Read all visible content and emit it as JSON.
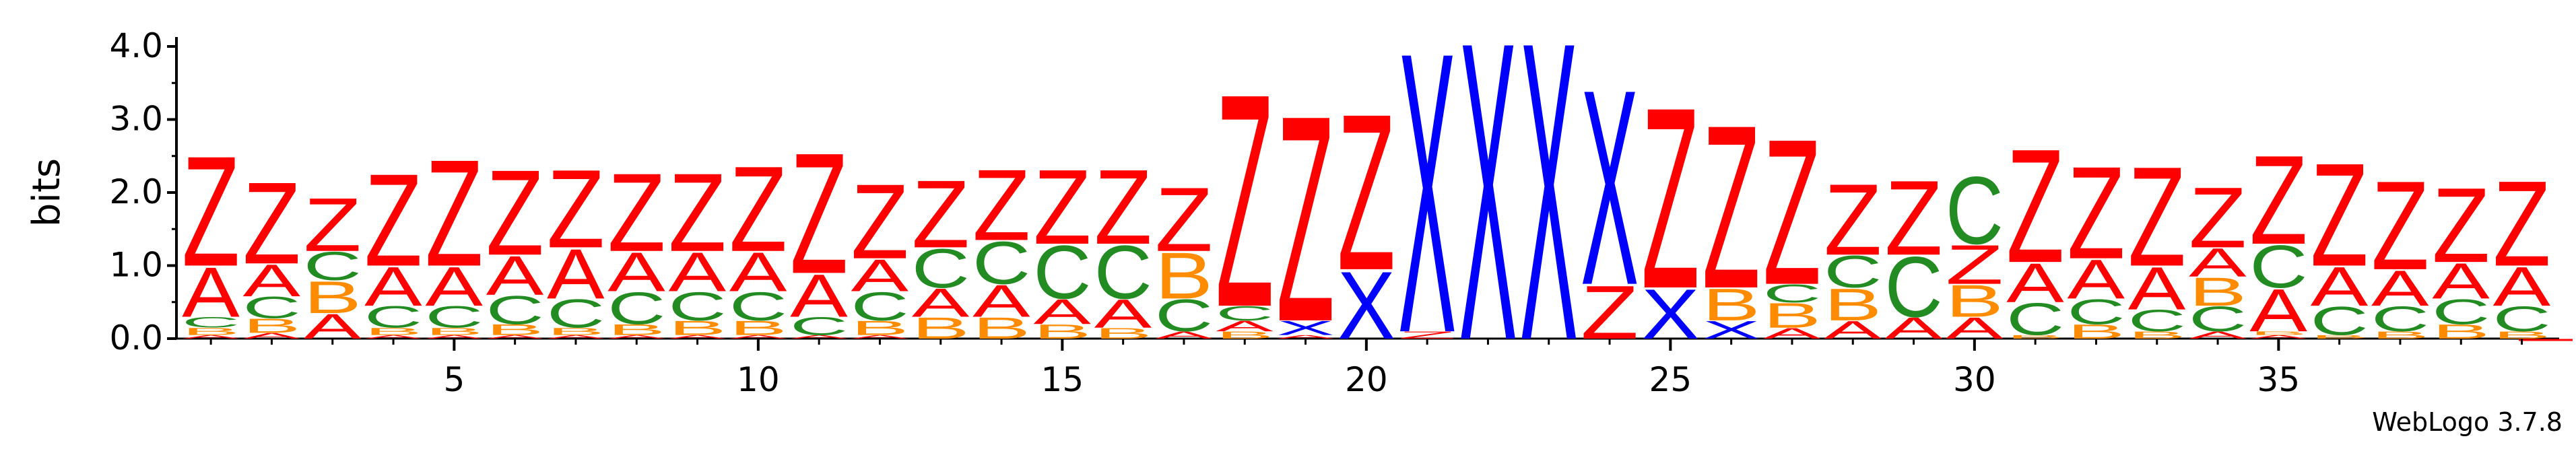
{
  "footer": {
    "credit": "WebLogo 3.7.8"
  },
  "chart_data": {
    "type": "sequence_logo",
    "ylabel": "bits",
    "ylim": [
      0,
      4.2
    ],
    "yticks": [
      "0.0",
      "1.0",
      "2.0",
      "3.0",
      "4.0"
    ],
    "xtick_positions": [
      5,
      10,
      15,
      20,
      25,
      30,
      35
    ],
    "colors": {
      "Z": "#ff0000",
      "A": "#ff0000",
      "B": "#ff8c00",
      "C": "#228b22",
      "X": "#0000ff"
    },
    "positions": [
      {
        "x": 1,
        "stack": [
          [
            "A",
            0.05
          ],
          [
            "B",
            0.1
          ],
          [
            "C",
            0.15
          ],
          [
            "A",
            0.7
          ],
          [
            "Z",
            1.55
          ]
        ]
      },
      {
        "x": 2,
        "stack": [
          [
            "A",
            0.08
          ],
          [
            "B",
            0.2
          ],
          [
            "C",
            0.3
          ],
          [
            "A",
            0.45
          ],
          [
            "Z",
            1.15
          ]
        ]
      },
      {
        "x": 3,
        "stack": [
          [
            "A",
            0.35
          ],
          [
            "B",
            0.45
          ],
          [
            "C",
            0.4
          ],
          [
            "Z",
            0.75
          ]
        ]
      },
      {
        "x": 4,
        "stack": [
          [
            "A",
            0.05
          ],
          [
            "B",
            0.1
          ],
          [
            "C",
            0.3
          ],
          [
            "A",
            0.55
          ],
          [
            "Z",
            1.3
          ]
        ]
      },
      {
        "x": 5,
        "stack": [
          [
            "A",
            0.05
          ],
          [
            "B",
            0.1
          ],
          [
            "C",
            0.3
          ],
          [
            "A",
            0.55
          ],
          [
            "Z",
            1.5
          ]
        ]
      },
      {
        "x": 6,
        "stack": [
          [
            "A",
            0.05
          ],
          [
            "B",
            0.15
          ],
          [
            "C",
            0.4
          ],
          [
            "A",
            0.55
          ],
          [
            "Z",
            1.2
          ]
        ]
      },
      {
        "x": 7,
        "stack": [
          [
            "A",
            0.05
          ],
          [
            "B",
            0.1
          ],
          [
            "C",
            0.4
          ],
          [
            "A",
            0.7
          ],
          [
            "Z",
            1.1
          ]
        ]
      },
      {
        "x": 8,
        "stack": [
          [
            "A",
            0.05
          ],
          [
            "B",
            0.15
          ],
          [
            "C",
            0.45
          ],
          [
            "A",
            0.55
          ],
          [
            "Z",
            1.1
          ]
        ]
      },
      {
        "x": 9,
        "stack": [
          [
            "A",
            0.05
          ],
          [
            "B",
            0.2
          ],
          [
            "C",
            0.4
          ],
          [
            "A",
            0.55
          ],
          [
            "Z",
            1.1
          ]
        ]
      },
      {
        "x": 10,
        "stack": [
          [
            "A",
            0.05
          ],
          [
            "B",
            0.2
          ],
          [
            "C",
            0.4
          ],
          [
            "A",
            0.55
          ],
          [
            "Z",
            1.2
          ]
        ]
      },
      {
        "x": 11,
        "stack": [
          [
            "A",
            0.05
          ],
          [
            "C",
            0.25
          ],
          [
            "A",
            0.6
          ],
          [
            "Z",
            1.7
          ]
        ]
      },
      {
        "x": 12,
        "stack": [
          [
            "A",
            0.05
          ],
          [
            "B",
            0.2
          ],
          [
            "C",
            0.4
          ],
          [
            "A",
            0.45
          ],
          [
            "Z",
            1.05
          ]
        ]
      },
      {
        "x": 13,
        "stack": [
          [
            "B",
            0.3
          ],
          [
            "A",
            0.4
          ],
          [
            "C",
            0.55
          ],
          [
            "Z",
            0.95
          ]
        ]
      },
      {
        "x": 14,
        "stack": [
          [
            "B",
            0.3
          ],
          [
            "A",
            0.45
          ],
          [
            "C",
            0.6
          ],
          [
            "Z",
            1.0
          ]
        ]
      },
      {
        "x": 15,
        "stack": [
          [
            "B",
            0.2
          ],
          [
            "A",
            0.35
          ],
          [
            "C",
            0.75
          ],
          [
            "Z",
            1.05
          ]
        ]
      },
      {
        "x": 16,
        "stack": [
          [
            "B",
            0.15
          ],
          [
            "A",
            0.4
          ],
          [
            "C",
            0.75
          ],
          [
            "Z",
            1.05
          ]
        ]
      },
      {
        "x": 17,
        "stack": [
          [
            "A",
            0.1
          ],
          [
            "C",
            0.45
          ],
          [
            "B",
            0.65
          ],
          [
            "Z",
            0.9
          ]
        ]
      },
      {
        "x": 18,
        "stack": [
          [
            "B",
            0.1
          ],
          [
            "A",
            0.15
          ],
          [
            "C",
            0.2
          ],
          [
            "Z",
            3.0
          ]
        ]
      },
      {
        "x": 19,
        "stack": [
          [
            "A",
            0.05
          ],
          [
            "X",
            0.2
          ],
          [
            "Z",
            2.9
          ]
        ]
      },
      {
        "x": 20,
        "stack": [
          [
            "X",
            0.95
          ],
          [
            "Z",
            2.2
          ]
        ]
      },
      {
        "x": 21,
        "stack": [
          [
            "Z",
            0.1
          ],
          [
            "X",
            3.95
          ]
        ]
      },
      {
        "x": 22,
        "stack": [
          [
            "X",
            4.2
          ]
        ]
      },
      {
        "x": 23,
        "stack": [
          [
            "X",
            4.2
          ]
        ]
      },
      {
        "x": 24,
        "stack": [
          [
            "Z",
            0.75
          ],
          [
            "X",
            2.75
          ]
        ]
      },
      {
        "x": 25,
        "stack": [
          [
            "X",
            0.7
          ],
          [
            "Z",
            2.55
          ]
        ]
      },
      {
        "x": 26,
        "stack": [
          [
            "X",
            0.25
          ],
          [
            "B",
            0.45
          ],
          [
            "Z",
            2.3
          ]
        ]
      },
      {
        "x": 27,
        "stack": [
          [
            "A",
            0.15
          ],
          [
            "B",
            0.35
          ],
          [
            "C",
            0.25
          ],
          [
            "Z",
            2.05
          ]
        ]
      },
      {
        "x": 28,
        "stack": [
          [
            "A",
            0.25
          ],
          [
            "B",
            0.45
          ],
          [
            "C",
            0.45
          ],
          [
            "Z",
            1.0
          ]
        ]
      },
      {
        "x": 29,
        "stack": [
          [
            "A",
            0.3
          ],
          [
            "C",
            0.85
          ],
          [
            "Z",
            1.05
          ]
        ]
      },
      {
        "x": 30,
        "stack": [
          [
            "A",
            0.3
          ],
          [
            "B",
            0.45
          ],
          [
            "Z",
            0.55
          ],
          [
            "C",
            0.95
          ]
        ]
      },
      {
        "x": 31,
        "stack": [
          [
            "B",
            0.05
          ],
          [
            "C",
            0.45
          ],
          [
            "A",
            0.55
          ],
          [
            "Z",
            1.6
          ]
        ]
      },
      {
        "x": 32,
        "stack": [
          [
            "B",
            0.2
          ],
          [
            "C",
            0.35
          ],
          [
            "A",
            0.55
          ],
          [
            "Z",
            1.3
          ]
        ]
      },
      {
        "x": 33,
        "stack": [
          [
            "B",
            0.1
          ],
          [
            "C",
            0.3
          ],
          [
            "A",
            0.6
          ],
          [
            "Z",
            1.4
          ]
        ]
      },
      {
        "x": 34,
        "stack": [
          [
            "A",
            0.1
          ],
          [
            "C",
            0.35
          ],
          [
            "B",
            0.4
          ],
          [
            "A",
            0.4
          ],
          [
            "Z",
            0.85
          ]
        ]
      },
      {
        "x": 35,
        "stack": [
          [
            "A",
            0.05
          ],
          [
            "B",
            0.05
          ],
          [
            "A",
            0.6
          ],
          [
            "C",
            0.6
          ],
          [
            "Z",
            1.25
          ]
        ]
      },
      {
        "x": 36,
        "stack": [
          [
            "B",
            0.05
          ],
          [
            "C",
            0.4
          ],
          [
            "A",
            0.55
          ],
          [
            "Z",
            1.45
          ]
        ]
      },
      {
        "x": 37,
        "stack": [
          [
            "B",
            0.1
          ],
          [
            "C",
            0.35
          ],
          [
            "A",
            0.5
          ],
          [
            "Z",
            1.25
          ]
        ]
      },
      {
        "x": 38,
        "stack": [
          [
            "B",
            0.2
          ],
          [
            "C",
            0.35
          ],
          [
            "A",
            0.5
          ],
          [
            "Z",
            1.05
          ]
        ]
      },
      {
        "x": 39,
        "stack": [
          [
            "B",
            0.1
          ],
          [
            "C",
            0.35
          ],
          [
            "A",
            0.55
          ],
          [
            "Z",
            1.2
          ]
        ]
      }
    ]
  }
}
